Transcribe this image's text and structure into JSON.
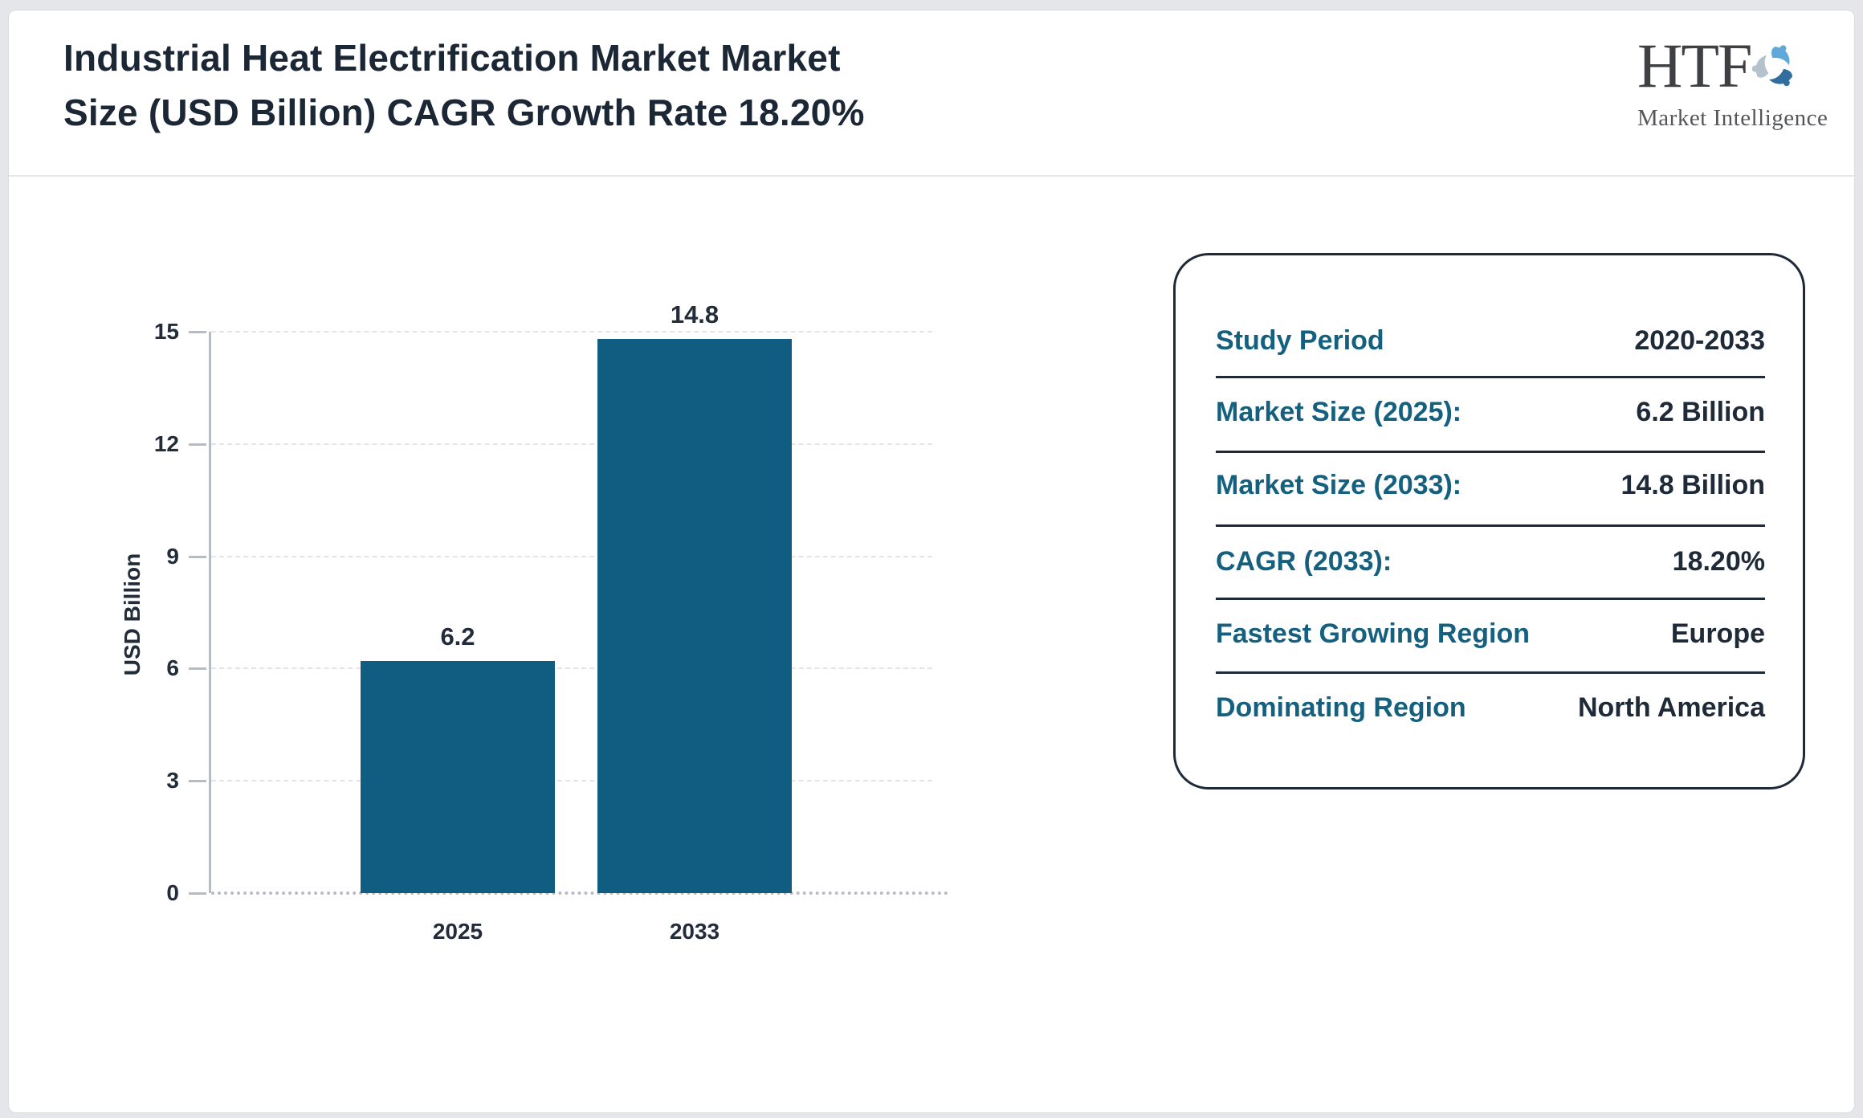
{
  "header": {
    "title_line1": "Industrial Heat Electrification Market Market",
    "title_line2": "Size (USD Billion) CAGR Growth Rate 18.20%"
  },
  "logo": {
    "text": "HTF",
    "subtext": "Market Intelligence"
  },
  "chart_data": {
    "type": "bar",
    "categories": [
      "2025",
      "2033"
    ],
    "values": [
      6.2,
      14.8
    ],
    "bar_labels": [
      "6.2",
      "14.8"
    ],
    "title": "",
    "xlabel": "",
    "ylabel": "USD Billion",
    "yticks": [
      0,
      3,
      6,
      9,
      12,
      15
    ],
    "ylim": [
      0,
      15
    ],
    "bar_color": "#115d81",
    "grid": "horizontal-dashed",
    "legend": "none"
  },
  "info_panel": {
    "rows": [
      {
        "label": "Study Period",
        "value": "2020-2033"
      },
      {
        "label": "Market Size (2025):",
        "value": "6.2 Billion"
      },
      {
        "label": "Market Size (2033):",
        "value": "14.8 Billion"
      },
      {
        "label": "CAGR (2033):",
        "value": "18.20%"
      },
      {
        "label": "Fastest Growing Region",
        "value": "Europe"
      },
      {
        "label": "Dominating Region",
        "value": "North America"
      }
    ]
  },
  "colors": {
    "bar": "#115d81",
    "panel_label": "#15607f",
    "dark_text": "#1e2a38",
    "axis": "#b7bbc2",
    "gridline": "#e3e4e7",
    "page_bg": "#e4e6ea"
  }
}
